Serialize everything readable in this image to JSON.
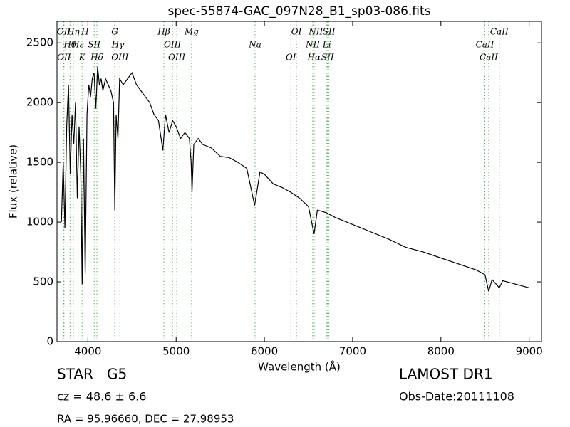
{
  "chart_data": {
    "type": "line",
    "title": "spec-55874-GAC_097N28_B1_sp03-086.fits",
    "xlabel": "Wavelength (Å)",
    "ylabel": "Flux (relative)",
    "xlim": [
      3650,
      9140
    ],
    "ylim": [
      0,
      2680
    ],
    "xticks": [
      4000,
      5000,
      6000,
      7000,
      8000,
      9000
    ],
    "yticks": [
      0,
      500,
      1000,
      1500,
      2000,
      2500
    ],
    "color": "#000000",
    "line_color": "#5cb85c",
    "x": [
      3700,
      3720,
      3740,
      3760,
      3780,
      3800,
      3820,
      3840,
      3860,
      3880,
      3900,
      3920,
      3935,
      3950,
      3970,
      3990,
      4010,
      4030,
      4050,
      4070,
      4090,
      4110,
      4130,
      4150,
      4170,
      4200,
      4230,
      4260,
      4290,
      4305,
      4320,
      4340,
      4360,
      4400,
      4450,
      4500,
      4550,
      4600,
      4650,
      4700,
      4750,
      4800,
      4850,
      4880,
      4920,
      4960,
      5000,
      5050,
      5100,
      5150,
      5170,
      5180,
      5200,
      5250,
      5300,
      5400,
      5500,
      5600,
      5700,
      5800,
      5890,
      5950,
      6000,
      6100,
      6200,
      6300,
      6400,
      6500,
      6563,
      6600,
      6700,
      6800,
      6900,
      7000,
      7200,
      7400,
      7600,
      7800,
      8000,
      8200,
      8400,
      8500,
      8542,
      8580,
      8662,
      8700,
      8800,
      8900,
      9000
    ],
    "values": [
      1000,
      1500,
      950,
      1800,
      2150,
      1400,
      1900,
      1650,
      2000,
      1200,
      1800,
      1400,
      480,
      1700,
      570,
      1900,
      2150,
      2050,
      2200,
      2250,
      1950,
      2300,
      2150,
      2200,
      2100,
      2200,
      2150,
      2100,
      2000,
      1100,
      1900,
      1700,
      2200,
      2150,
      2200,
      2250,
      2150,
      2100,
      2050,
      2000,
      1900,
      1850,
      1600,
      1900,
      1750,
      1850,
      1800,
      1700,
      1750,
      1700,
      1500,
      1250,
      1650,
      1700,
      1650,
      1620,
      1550,
      1540,
      1500,
      1450,
      1140,
      1420,
      1400,
      1320,
      1290,
      1250,
      1200,
      1130,
      900,
      1100,
      1080,
      1040,
      1010,
      980,
      920,
      860,
      790,
      750,
      700,
      650,
      600,
      560,
      420,
      520,
      450,
      510,
      490,
      470,
      450
    ],
    "lines": [
      {
        "label": "OII",
        "wavelength": 3727
      },
      {
        "label": "Hθ",
        "wavelength": 3798
      },
      {
        "label": "OII",
        "wavelength": 3729
      },
      {
        "label": "Hη",
        "wavelength": 3835
      },
      {
        "label": "Hε",
        "wavelength": 3889
      },
      {
        "label": "K",
        "wavelength": 3934
      },
      {
        "label": "H",
        "wavelength": 3968
      },
      {
        "label": "SII",
        "wavelength": 4072
      },
      {
        "label": "Hδ",
        "wavelength": 4102
      },
      {
        "label": "G",
        "wavelength": 4304
      },
      {
        "label": "Hγ",
        "wavelength": 4340
      },
      {
        "label": "OIII",
        "wavelength": 4363
      },
      {
        "label": "Hβ",
        "wavelength": 4861
      },
      {
        "label": "OIII",
        "wavelength": 4959
      },
      {
        "label": "OIII",
        "wavelength": 5007
      },
      {
        "label": "Mg",
        "wavelength": 5175
      },
      {
        "label": "Na",
        "wavelength": 5894
      },
      {
        "label": "OI",
        "wavelength": 6300
      },
      {
        "label": "OI",
        "wavelength": 6363
      },
      {
        "label": "NII",
        "wavelength": 6548
      },
      {
        "label": "Hα",
        "wavelength": 6563
      },
      {
        "label": "NII",
        "wavelength": 6583
      },
      {
        "label": "Li",
        "wavelength": 6708
      },
      {
        "label": "SII",
        "wavelength": 6716
      },
      {
        "label": "SII",
        "wavelength": 6731
      },
      {
        "label": "CaII",
        "wavelength": 8498
      },
      {
        "label": "CaII",
        "wavelength": 8542
      },
      {
        "label": "CaII",
        "wavelength": 8662
      }
    ],
    "object_class": "STAR   G5",
    "redshift": "cz = 48.6 ± 6.6",
    "coordinates": "RA = 95.96660, DEC = 27.98953",
    "survey": "LAMOST DR1",
    "obs_date": "Obs-Date:20111108"
  }
}
